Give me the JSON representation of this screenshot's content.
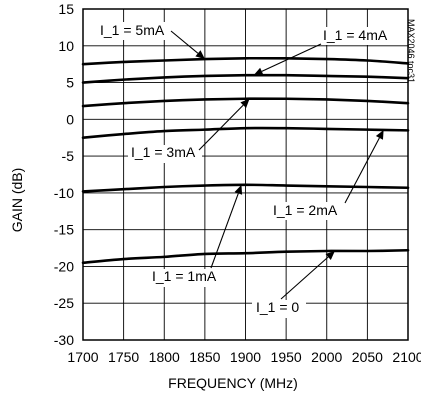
{
  "chart_data": {
    "type": "line",
    "xlabel": "FREQUENCY (MHz)",
    "ylabel": "GAIN (dB)",
    "xlim": [
      1700,
      2100
    ],
    "ylim": [
      -30,
      15
    ],
    "xticks": [
      1700,
      1750,
      1800,
      1850,
      1900,
      1950,
      2000,
      2050,
      2100
    ],
    "yticks": [
      -30,
      -25,
      -20,
      -15,
      -10,
      -5,
      0,
      5,
      10,
      15
    ],
    "grid": true,
    "watermark": "MAX2046 toc31",
    "series": [
      {
        "name": "I_1 = 5mA",
        "x": [
          1700,
          1750,
          1800,
          1850,
          1900,
          1950,
          2000,
          2050,
          2100
        ],
        "y": [
          7.5,
          7.8,
          8.0,
          8.2,
          8.3,
          8.3,
          8.2,
          8.0,
          7.6
        ]
      },
      {
        "name": "I_1 = 4mA",
        "x": [
          1700,
          1750,
          1800,
          1850,
          1900,
          1950,
          2000,
          2050,
          2100
        ],
        "y": [
          5.0,
          5.4,
          5.7,
          5.9,
          6.0,
          6.0,
          5.9,
          5.8,
          5.6
        ]
      },
      {
        "name": "I_1 = 3mA",
        "x": [
          1700,
          1750,
          1800,
          1850,
          1900,
          1950,
          2000,
          2050,
          2100
        ],
        "y": [
          1.8,
          2.2,
          2.5,
          2.7,
          2.8,
          2.8,
          2.7,
          2.5,
          2.2
        ]
      },
      {
        "name": "I_1 = 2mA",
        "x": [
          1700,
          1750,
          1800,
          1850,
          1900,
          1950,
          2000,
          2050,
          2100
        ],
        "y": [
          -2.5,
          -2.0,
          -1.6,
          -1.4,
          -1.2,
          -1.2,
          -1.3,
          -1.4,
          -1.5
        ]
      },
      {
        "name": "I_1 = 1mA",
        "x": [
          1700,
          1750,
          1800,
          1850,
          1900,
          1950,
          2000,
          2050,
          2100
        ],
        "y": [
          -9.8,
          -9.5,
          -9.2,
          -9.0,
          -8.9,
          -9.0,
          -9.1,
          -9.2,
          -9.3
        ]
      },
      {
        "name": "I_1 = 0",
        "x": [
          1700,
          1750,
          1800,
          1850,
          1900,
          1950,
          2000,
          2050,
          2100
        ],
        "y": [
          -19.5,
          -19.0,
          -18.7,
          -18.3,
          -18.2,
          -18.0,
          -17.9,
          -17.9,
          -17.8
        ]
      }
    ],
    "annotations": [
      {
        "text": "I_1 = 5mA",
        "series": 0,
        "at_x": 1850
      },
      {
        "text": "I_1 = 4mA",
        "series": 1,
        "at_x": 1910
      },
      {
        "text": "I_1 = 3mA",
        "series": 2,
        "at_x": 1905
      },
      {
        "text": "I_1 = 2mA",
        "series": 3,
        "at_x": 2070
      },
      {
        "text": "I_1 = 1mA",
        "series": 4,
        "at_x": 1895
      },
      {
        "text": "I_1 = 0",
        "series": 5,
        "at_x": 2010
      }
    ]
  }
}
